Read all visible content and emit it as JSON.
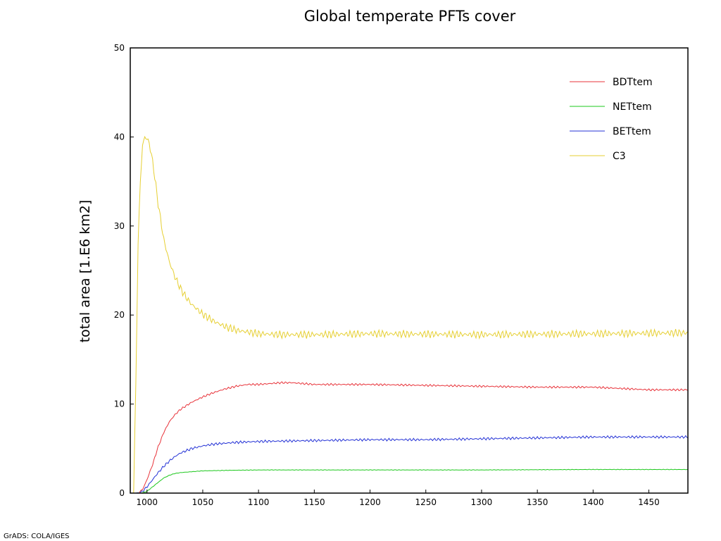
{
  "chart_data": {
    "type": "line",
    "title": "Global temperate PFTs cover",
    "xlabel": "",
    "ylabel": "total area [1.E6 km2]",
    "xlim": [
      985,
      1485
    ],
    "ylim": [
      0,
      50
    ],
    "xticks": [
      1000,
      1050,
      1100,
      1150,
      1200,
      1250,
      1300,
      1350,
      1400,
      1450
    ],
    "yticks": [
      0,
      10,
      20,
      30,
      40,
      50
    ],
    "grid": false,
    "legend_position": "top-right",
    "series": [
      {
        "name": "BDTtem",
        "color": "#e8333a",
        "x": [
          985,
          988,
          992,
          996,
          1000,
          1005,
          1010,
          1015,
          1020,
          1025,
          1030,
          1040,
          1050,
          1060,
          1070,
          1080,
          1090,
          1100,
          1110,
          1120,
          1130,
          1140,
          1150,
          1175,
          1200,
          1250,
          1300,
          1350,
          1400,
          1450,
          1485
        ],
        "y": [
          0,
          0,
          0,
          0.4,
          1.5,
          3.2,
          5.2,
          6.8,
          8.0,
          8.8,
          9.4,
          10.2,
          10.8,
          11.3,
          11.7,
          12.0,
          12.2,
          12.2,
          12.3,
          12.4,
          12.4,
          12.3,
          12.2,
          12.2,
          12.2,
          12.1,
          12.0,
          11.9,
          11.9,
          11.6,
          11.6
        ],
        "noise": 0.12
      },
      {
        "name": "NETtem",
        "color": "#1ec81e",
        "x": [
          985,
          990,
          995,
          1000,
          1005,
          1010,
          1015,
          1020,
          1025,
          1030,
          1040,
          1050,
          1070,
          1100,
          1200,
          1300,
          1400,
          1485
        ],
        "y": [
          0,
          0,
          0,
          0.2,
          0.7,
          1.2,
          1.7,
          2.0,
          2.2,
          2.3,
          2.4,
          2.5,
          2.55,
          2.6,
          2.6,
          2.6,
          2.65,
          2.65
        ],
        "noise": 0.03
      },
      {
        "name": "BETtem",
        "color": "#2533d6",
        "x": [
          985,
          990,
          995,
          1000,
          1005,
          1010,
          1015,
          1020,
          1025,
          1030,
          1040,
          1050,
          1060,
          1080,
          1100,
          1150,
          1200,
          1250,
          1300,
          1350,
          1400,
          1450,
          1485
        ],
        "y": [
          0,
          0,
          0.1,
          0.7,
          1.5,
          2.3,
          3.0,
          3.6,
          4.1,
          4.5,
          5.0,
          5.3,
          5.5,
          5.7,
          5.8,
          5.9,
          6.0,
          6.0,
          6.1,
          6.2,
          6.3,
          6.3,
          6.3
        ],
        "noise": 0.15
      },
      {
        "name": "C3",
        "color": "#e6cf32",
        "x": [
          985,
          988,
          990,
          992,
          994,
          996,
          998,
          1000,
          1002,
          1004,
          1006,
          1008,
          1010,
          1015,
          1020,
          1025,
          1030,
          1035,
          1040,
          1050,
          1060,
          1070,
          1080,
          1090,
          1100,
          1120,
          1150,
          1200,
          1300,
          1400,
          1485
        ],
        "y": [
          0,
          0,
          12,
          28,
          35,
          39,
          40,
          39.8,
          39.3,
          38.0,
          36.4,
          34.5,
          32.5,
          28.5,
          26.0,
          24.3,
          23.0,
          22.0,
          21.2,
          20.1,
          19.3,
          18.7,
          18.3,
          18.1,
          17.9,
          17.8,
          17.8,
          17.9,
          17.8,
          17.9,
          18.0
        ],
        "noise": 0.45
      }
    ]
  },
  "footer": {
    "credit": "GrADS: COLA/IGES"
  }
}
